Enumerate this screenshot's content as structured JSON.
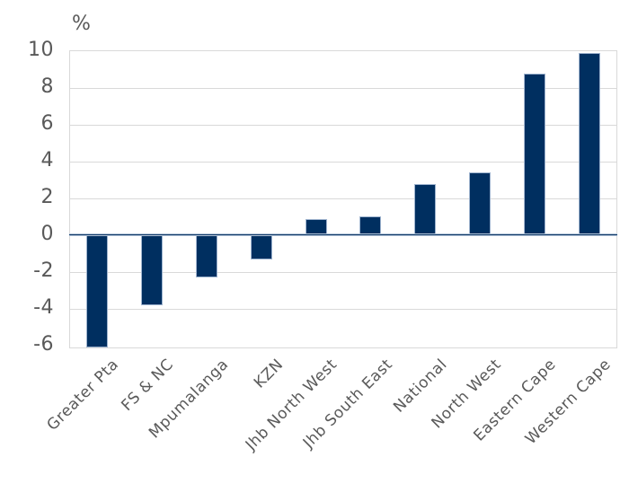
{
  "chart_data": {
    "type": "bar",
    "title": "",
    "ylabel": "%",
    "xlabel": "",
    "categories": [
      "Greater Pta",
      "FS & NC",
      "Mpumalanga",
      "KZN",
      "Jhb North West",
      "Jhb South East",
      "National",
      "North West",
      "Eastern Cape",
      "Western Cape"
    ],
    "values": [
      -6.1,
      -3.8,
      -2.3,
      -1.3,
      0.9,
      1.0,
      2.8,
      3.4,
      8.8,
      9.9
    ],
    "ylim": [
      -6.1,
      10
    ],
    "yticks": [
      10,
      8,
      6,
      4,
      2,
      0,
      -2,
      -4,
      -6
    ],
    "grid": "horizontal",
    "legend": "none",
    "x_label_rotation_deg": -45,
    "colors": {
      "bar_fill": "#002f60",
      "bar_border": "#9fb4cf",
      "gridline": "#d9d9d9",
      "plot_border": "#d9d9d9",
      "axis_text": "#595959",
      "zero_line": "#0e3866",
      "zero_line_halo": "#b6c6da",
      "background": "#ffffff"
    }
  }
}
